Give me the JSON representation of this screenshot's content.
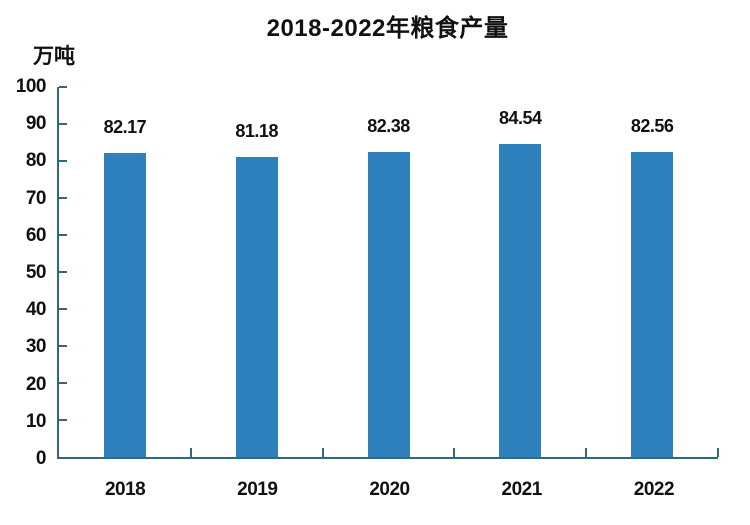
{
  "title": "2018-2022年粮食产量",
  "unit_label": "万吨",
  "colors": {
    "bar": "#2f81be",
    "axis": "#31687e",
    "text": "#111111",
    "background": "#ffffff"
  },
  "chart_data": {
    "type": "bar",
    "title": "2018-2022年粮食产量",
    "ylabel": "万吨",
    "xlabel": "",
    "categories": [
      "2018",
      "2019",
      "2020",
      "2021",
      "2022"
    ],
    "values": [
      82.17,
      81.18,
      82.38,
      84.54,
      82.56
    ],
    "value_labels": [
      "82.17",
      "81.18",
      "82.38",
      "84.54",
      "82.56"
    ],
    "ylim": [
      0,
      100
    ],
    "yticks": [
      0,
      10,
      20,
      30,
      40,
      50,
      60,
      70,
      80,
      90,
      100
    ],
    "grid": false,
    "legend": "none",
    "bar_color": "#2f81be"
  }
}
